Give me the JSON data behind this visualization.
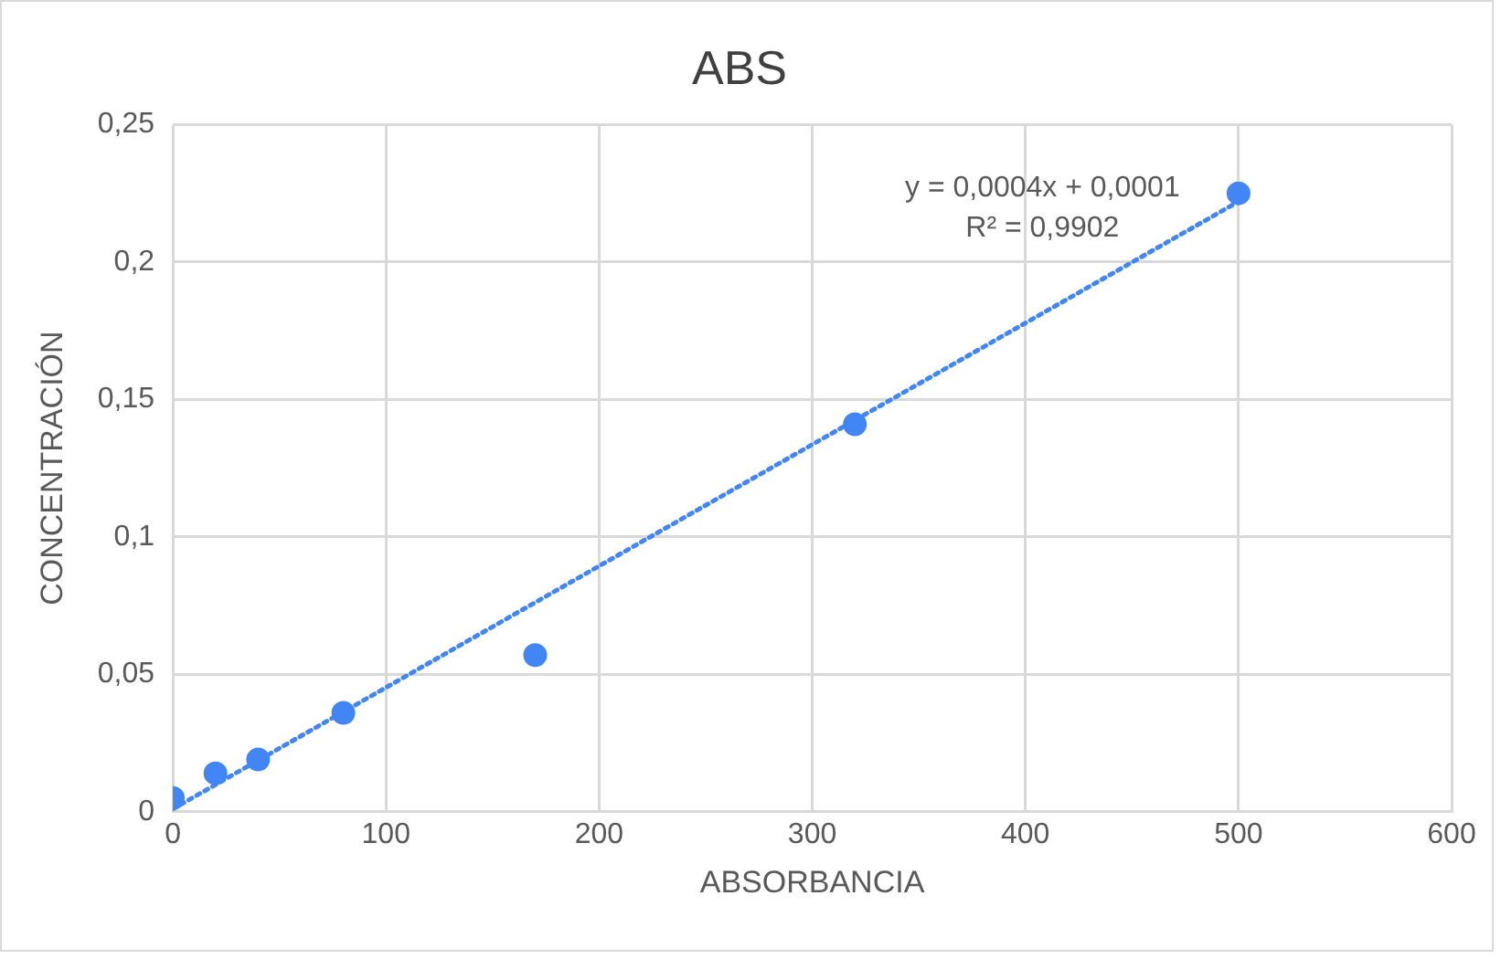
{
  "chart_data": {
    "type": "scatter",
    "title": "ABS",
    "xlabel": "ABSORBANCIA",
    "ylabel": "CONCENTRACIÓN",
    "series": [
      {
        "color": "#4285f4",
        "x": [
          0,
          20,
          40,
          80,
          170,
          320,
          500
        ],
        "values": [
          0.005,
          0.014,
          0.019,
          0.036,
          0.057,
          0.141,
          0.225
        ]
      },
      {
        "type": "line",
        "color": "#4285f4",
        "line_style": "dotted",
        "marker": "none",
        "x": [
          0,
          500
        ],
        "values": [
          0.001,
          0.222
        ]
      }
    ],
    "xlim": [
      0,
      600
    ],
    "xticks": [
      0,
      100,
      200,
      300,
      400,
      500,
      600
    ],
    "ylim": [
      0,
      0.25
    ],
    "yticks": [
      0,
      {
        "value": 0.05,
        "label": "0,05"
      },
      {
        "value": 0.1,
        "label": "0,1"
      },
      {
        "value": 0.15,
        "label": "0,15"
      },
      {
        "value": 0.2,
        "label": "0,2"
      },
      {
        "value": 0.25,
        "label": "0,25"
      }
    ],
    "annotations": [
      "y = 0,0004x + 0,0001",
      "R² = 0,9902"
    ],
    "grid": true,
    "legend": false,
    "marker": "circle"
  }
}
